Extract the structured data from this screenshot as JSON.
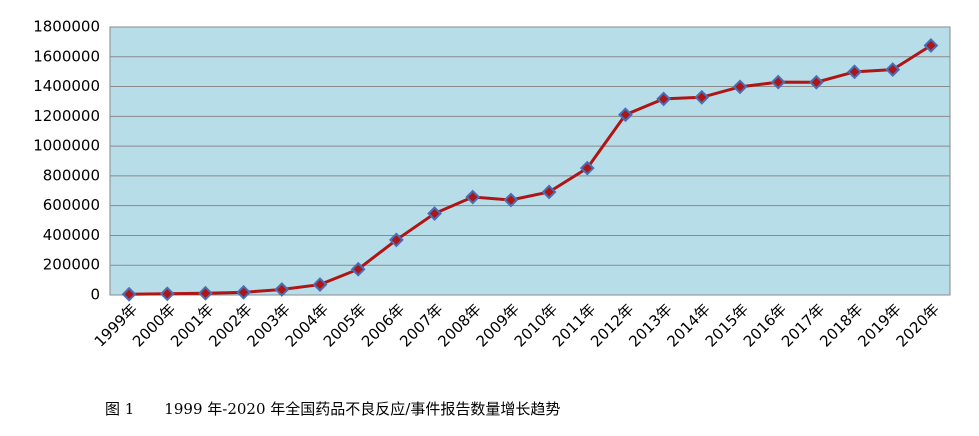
{
  "chart_data": {
    "type": "line",
    "categories": [
      "1999年",
      "2000年",
      "2001年",
      "2002年",
      "2003年",
      "2004年",
      "2005年",
      "2006年",
      "2007年",
      "2008年",
      "2009年",
      "2010年",
      "2011年",
      "2012年",
      "2013年",
      "2014年",
      "2015年",
      "2016年",
      "2017年",
      "2018年",
      "2019年",
      "2020年"
    ],
    "series": [
      {
        "color": "#b01515",
        "marker_color": "#4a6fb5",
        "values": [
          5000,
          8000,
          12000,
          18000,
          37000,
          70000,
          173000,
          370000,
          547000,
          658000,
          638000,
          692000,
          852000,
          1211000,
          1317000,
          1328000,
          1398000,
          1430000,
          1429000,
          1499000,
          1514000,
          1676000
        ]
      }
    ],
    "ylim": [
      0,
      1800000
    ],
    "yticks": [
      0,
      200000,
      400000,
      600000,
      800000,
      1000000,
      1200000,
      1400000,
      1600000,
      1800000
    ],
    "grid": true,
    "plot_background": "#b7dde8",
    "caption": "图 1　　1999 年-2020 年全国药品不良反应/事件报告数量增长趋势"
  }
}
